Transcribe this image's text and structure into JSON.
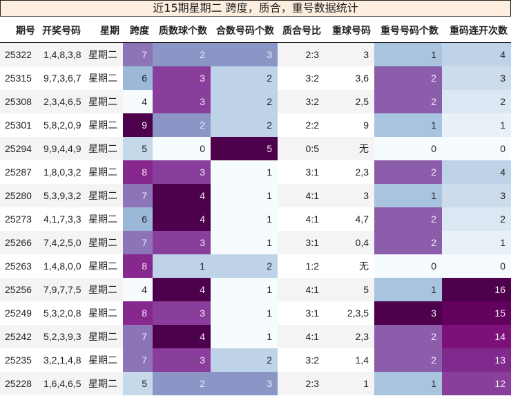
{
  "title": "近15期星期二 跨度，质合，重号数据统计",
  "columns": [
    "期号",
    "开奖号码",
    "星期",
    "跨度",
    "质数球个数",
    "合数号码个数",
    "质合号比",
    "重球号码",
    "重号号码个数",
    "重码连开次数"
  ],
  "rows": [
    {
      "id": "25322",
      "nums": "1,4,8,3,8",
      "day": "星期二",
      "span": "7",
      "prime": "2",
      "composite": "3",
      "ratio": "2:3",
      "repeat_nums": "3",
      "repeat_count": "1",
      "consecutive": "4"
    },
    {
      "id": "25315",
      "nums": "9,7,3,6,7",
      "day": "星期二",
      "span": "6",
      "prime": "3",
      "composite": "2",
      "ratio": "3:2",
      "repeat_nums": "3,6",
      "repeat_count": "2",
      "consecutive": "3"
    },
    {
      "id": "25308",
      "nums": "2,3,4,6,5",
      "day": "星期二",
      "span": "4",
      "prime": "3",
      "composite": "2",
      "ratio": "3:2",
      "repeat_nums": "2,5",
      "repeat_count": "2",
      "consecutive": "2"
    },
    {
      "id": "25301",
      "nums": "5,8,2,0,9",
      "day": "星期二",
      "span": "9",
      "prime": "2",
      "composite": "2",
      "ratio": "2:2",
      "repeat_nums": "9",
      "repeat_count": "1",
      "consecutive": "1"
    },
    {
      "id": "25294",
      "nums": "9,9,4,4,9",
      "day": "星期二",
      "span": "5",
      "prime": "0",
      "composite": "5",
      "ratio": "0:5",
      "repeat_nums": "无",
      "repeat_count": "0",
      "consecutive": "0"
    },
    {
      "id": "25287",
      "nums": "1,8,0,3,2",
      "day": "星期二",
      "span": "8",
      "prime": "3",
      "composite": "1",
      "ratio": "3:1",
      "repeat_nums": "2,3",
      "repeat_count": "2",
      "consecutive": "4"
    },
    {
      "id": "25280",
      "nums": "5,3,9,3,2",
      "day": "星期二",
      "span": "7",
      "prime": "4",
      "composite": "1",
      "ratio": "4:1",
      "repeat_nums": "3",
      "repeat_count": "1",
      "consecutive": "3"
    },
    {
      "id": "25273",
      "nums": "4,1,7,3,3",
      "day": "星期二",
      "span": "6",
      "prime": "4",
      "composite": "1",
      "ratio": "4:1",
      "repeat_nums": "4,7",
      "repeat_count": "2",
      "consecutive": "2"
    },
    {
      "id": "25266",
      "nums": "7,4,2,5,0",
      "day": "星期二",
      "span": "7",
      "prime": "3",
      "composite": "1",
      "ratio": "3:1",
      "repeat_nums": "0,4",
      "repeat_count": "2",
      "consecutive": "1"
    },
    {
      "id": "25263",
      "nums": "1,4,8,0,0",
      "day": "星期二",
      "span": "8",
      "prime": "1",
      "composite": "2",
      "ratio": "1:2",
      "repeat_nums": "无",
      "repeat_count": "0",
      "consecutive": "0"
    },
    {
      "id": "25256",
      "nums": "7,9,7,7,5",
      "day": "星期二",
      "span": "4",
      "prime": "4",
      "composite": "1",
      "ratio": "4:1",
      "repeat_nums": "5",
      "repeat_count": "1",
      "consecutive": "16"
    },
    {
      "id": "25249",
      "nums": "5,3,2,0,8",
      "day": "星期二",
      "span": "8",
      "prime": "3",
      "composite": "1",
      "ratio": "3:1",
      "repeat_nums": "2,3,5",
      "repeat_count": "3",
      "consecutive": "15"
    },
    {
      "id": "25242",
      "nums": "5,2,3,9,3",
      "day": "星期二",
      "span": "7",
      "prime": "4",
      "composite": "1",
      "ratio": "4:1",
      "repeat_nums": "2,3",
      "repeat_count": "2",
      "consecutive": "14"
    },
    {
      "id": "25235",
      "nums": "3,2,1,4,8",
      "day": "星期二",
      "span": "7",
      "prime": "3",
      "composite": "2",
      "ratio": "3:2",
      "repeat_nums": "1,4",
      "repeat_count": "2",
      "consecutive": "13"
    },
    {
      "id": "25228",
      "nums": "1,6,4,6,5",
      "day": "星期二",
      "span": "5",
      "prime": "2",
      "composite": "3",
      "ratio": "2:3",
      "repeat_nums": "1",
      "repeat_count": "1",
      "consecutive": "12"
    }
  ],
  "colors": {
    "title_bg": "#fdeee0",
    "span": {
      "4": "#f6fbfd",
      "5": "#c6d9ea",
      "6": "#9bb8d8",
      "7": "#8c74b8",
      "8": "#87288f",
      "9": "#4d004b"
    },
    "prime": {
      "0": "#f6fbfd",
      "1": "#bed3e8",
      "2": "#8b96c6",
      "3": "#883e9a",
      "4": "#4d004b"
    },
    "composite": {
      "1": "#f6fbfd",
      "2": "#bed3e8",
      "3": "#8b96c6",
      "5": "#4d004b"
    },
    "repeat_count": {
      "0": "#f6fbfd",
      "1": "#a9c4df",
      "2": "#8c5dab",
      "3": "#4d004b"
    },
    "consecutive": {
      "0": "#f6fbfd",
      "1": "#e8f0f8",
      "2": "#dbe7f2",
      "3": "#ccdcec",
      "4": "#bed3e8",
      "12": "#883e9a",
      "13": "#812a8e",
      "14": "#7d1079",
      "15": "#63025e",
      "16": "#4d004b"
    }
  }
}
